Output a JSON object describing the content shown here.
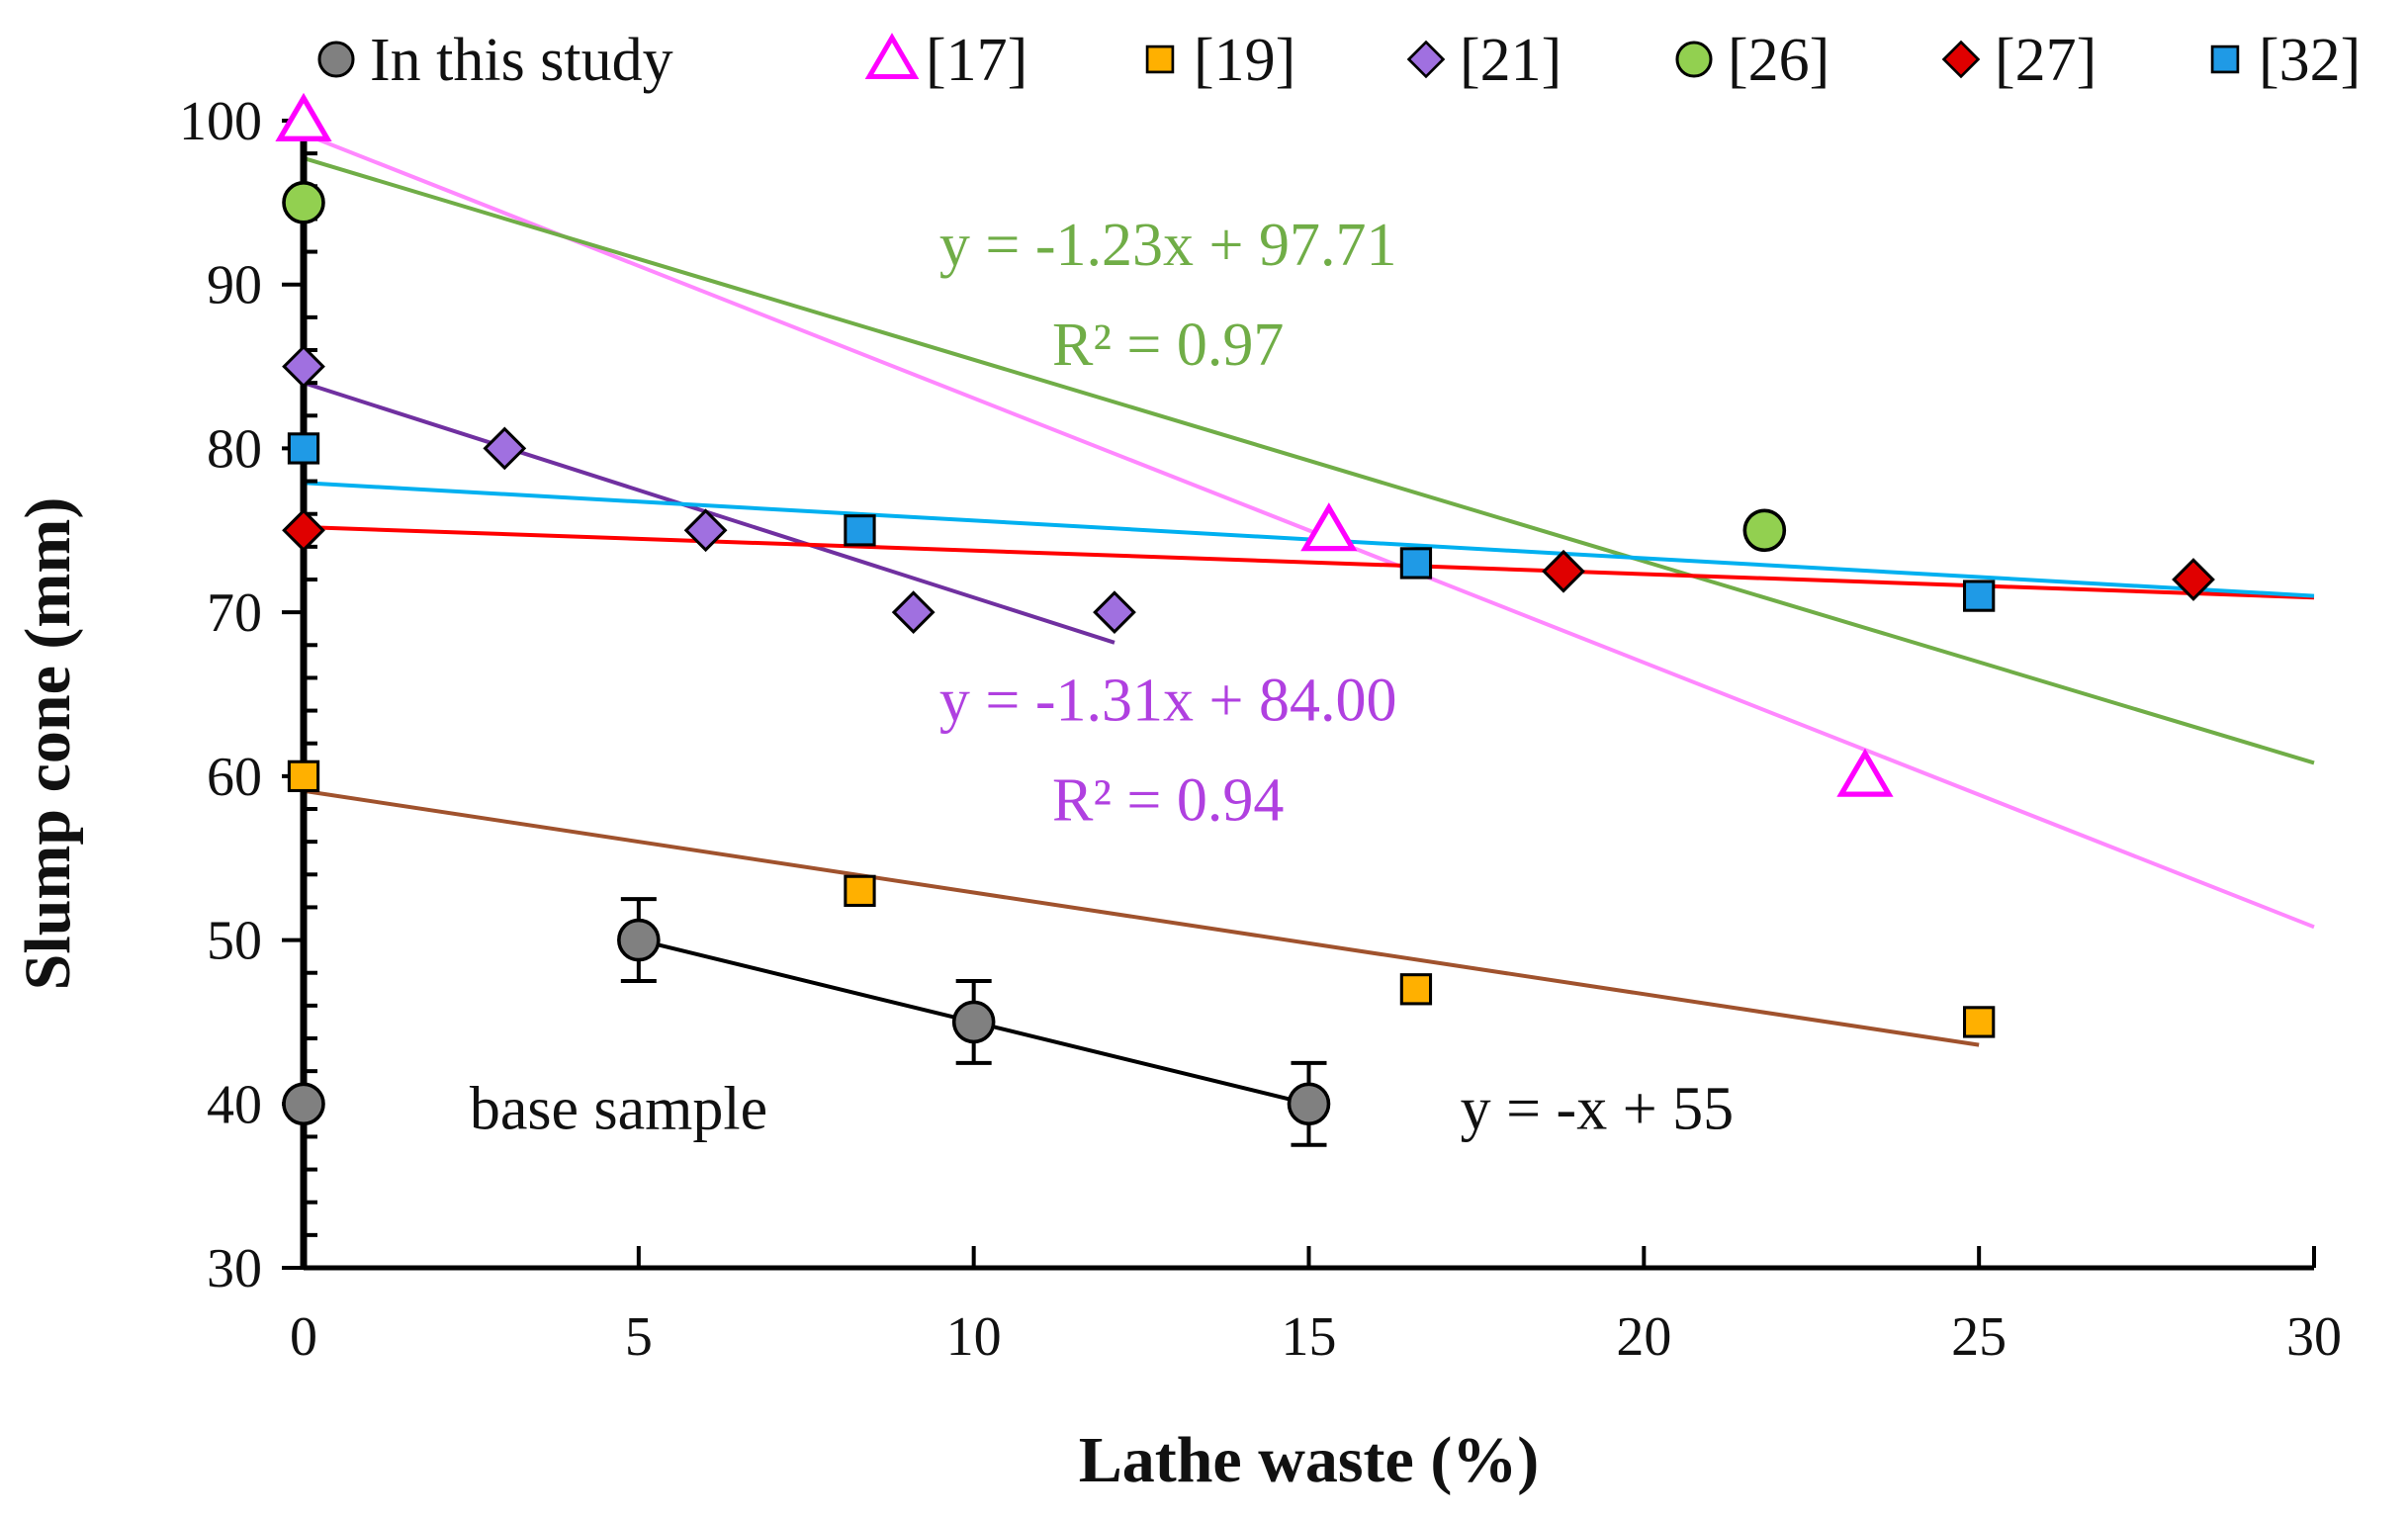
{
  "chart_data": {
    "type": "scatter",
    "xlabel": "Lathe waste (%)",
    "ylabel": "Slump cone (mm)",
    "xlim": [
      0,
      30
    ],
    "ylim": [
      30,
      100
    ],
    "x_ticks": [
      0,
      5,
      10,
      15,
      20,
      25,
      30
    ],
    "y_ticks": [
      30,
      40,
      50,
      60,
      70,
      80,
      90,
      100
    ],
    "grid": false,
    "legend_position": "top",
    "series": [
      {
        "name": "In this study",
        "marker": "circle",
        "color": "#808080",
        "x": [
          0,
          5,
          10,
          15
        ],
        "y": [
          40,
          50,
          45,
          40
        ],
        "error": [
          0,
          2.5,
          2.5,
          2.5
        ],
        "trend": {
          "x": [
            5,
            15
          ],
          "y": [
            50,
            40
          ],
          "color": "#000000"
        }
      },
      {
        "name": "[17]",
        "marker": "triangle",
        "color": "#ff00ff",
        "x": [
          0,
          15.3,
          23.3
        ],
        "y": [
          100,
          75,
          60
        ],
        "trend": {
          "x": [
            0,
            30
          ],
          "y": [
            99.2,
            50.8
          ],
          "color": "#ff88ff"
        }
      },
      {
        "name": "[19]",
        "marker": "square",
        "color": "#ffb000",
        "x": [
          0,
          8.3,
          16.6,
          25
        ],
        "y": [
          60,
          53,
          47,
          45
        ],
        "trend": {
          "x": [
            0,
            25
          ],
          "y": [
            59.1,
            43.6
          ],
          "color": "#a0522d"
        }
      },
      {
        "name": "[21]",
        "marker": "diamond",
        "color": "#a070e0",
        "x": [
          0,
          3,
          6,
          9.1,
          12.1
        ],
        "y": [
          85,
          80,
          75,
          70,
          70
        ],
        "trend": {
          "x": [
            0,
            12.1
          ],
          "y": [
            84.0,
            68.15
          ],
          "color": "#7030a0"
        }
      },
      {
        "name": "[26]",
        "marker": "circle",
        "color": "#92d050",
        "x": [
          0,
          21.8
        ],
        "y": [
          95,
          75
        ],
        "trend": {
          "x": [
            0,
            30
          ],
          "y": [
            97.71,
            60.81
          ],
          "color": "#70ad47"
        }
      },
      {
        "name": "[27]",
        "marker": "diamond",
        "color": "#e00000",
        "x": [
          0,
          18.8,
          28.2
        ],
        "y": [
          75,
          72.5,
          72
        ],
        "trend": {
          "x": [
            0,
            30
          ],
          "y": [
            75.2,
            70.9
          ],
          "color": "#ff0000"
        }
      },
      {
        "name": "[32]",
        "marker": "square",
        "color": "#1f9ae6",
        "x": [
          0,
          8.3,
          16.6,
          25
        ],
        "y": [
          80,
          75,
          73,
          71
        ],
        "trend": {
          "x": [
            0,
            30
          ],
          "y": [
            77.9,
            71.0
          ],
          "color": "#00b0f0"
        }
      }
    ],
    "annotations": [
      {
        "text": "y = -1.23x + 97.71",
        "color": "#70ad47",
        "x": 12.9,
        "y": 92.4
      },
      {
        "text": "R² = 0.97",
        "color": "#70ad47",
        "x": 12.9,
        "y": 86.3
      },
      {
        "text": "y = -1.31x + 84.00",
        "color": "#b040e0",
        "x": 12.9,
        "y": 64.6
      },
      {
        "text": "R² = 0.94",
        "color": "#b040e0",
        "x": 12.9,
        "y": 58.5
      },
      {
        "text": "y = -x + 55",
        "color": "#111111",
        "x": 19.3,
        "y": 39.7
      },
      {
        "text": "base sample",
        "color": "#111111",
        "x": 4.7,
        "y": 39.7
      }
    ]
  }
}
